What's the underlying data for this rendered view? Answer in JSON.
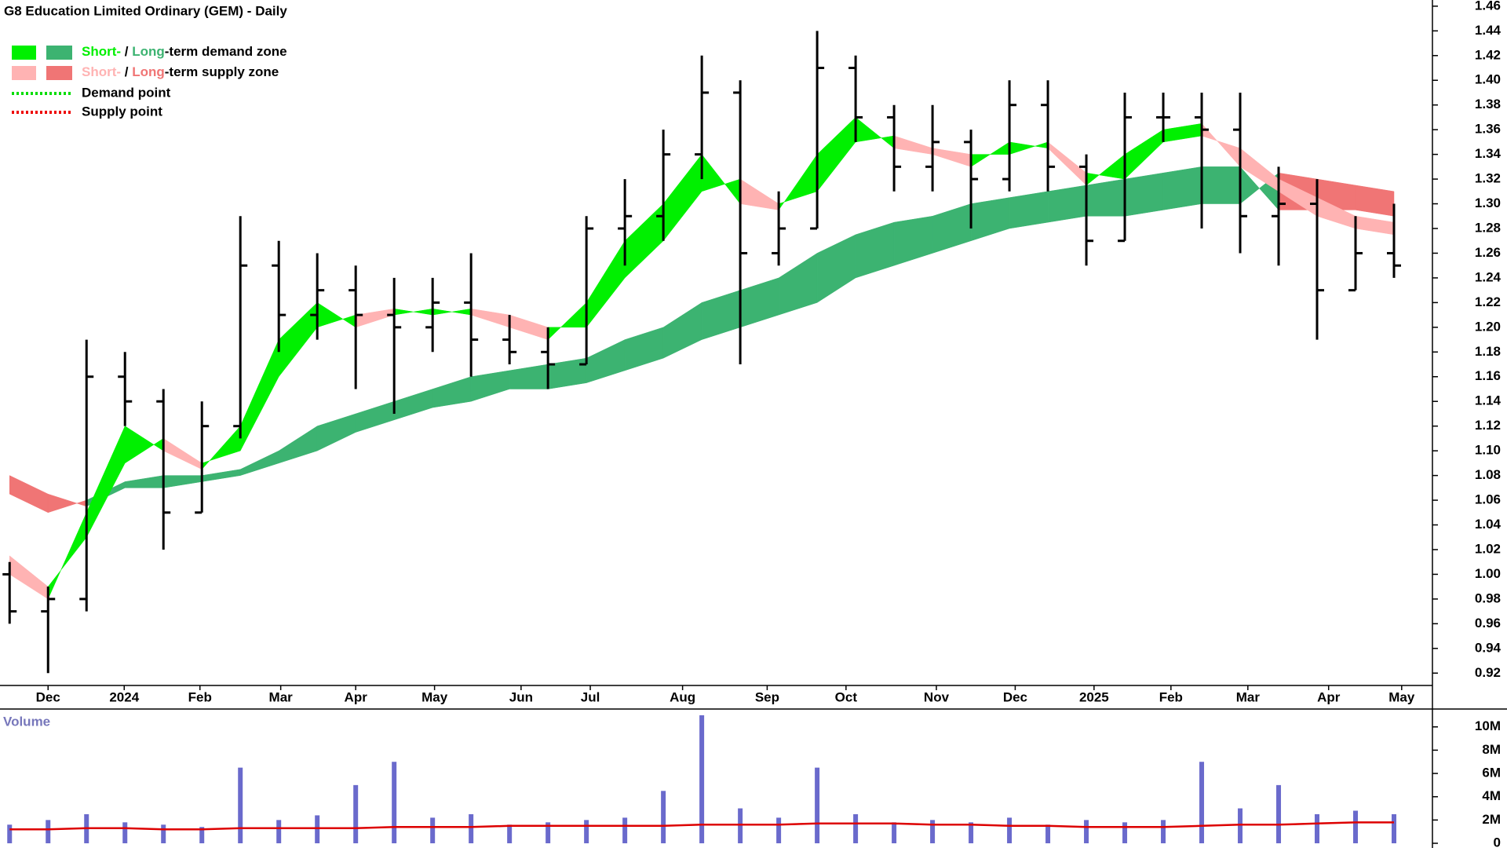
{
  "chart_data": [
    {
      "type": "ohlc",
      "title": "G8 Education Limited Ordinary (GEM) - Daily",
      "xlim": [
        -0.25,
        37.0
      ],
      "xticks": [
        {
          "value": 1.0,
          "label": "Dec"
        },
        {
          "value": 2.98,
          "label": "2024"
        },
        {
          "value": 4.95,
          "label": "Feb"
        },
        {
          "value": 7.05,
          "label": "Mar"
        },
        {
          "value": 9.0,
          "label": "Apr"
        },
        {
          "value": 11.05,
          "label": "May"
        },
        {
          "value": 13.3,
          "label": "Jun"
        },
        {
          "value": 15.1,
          "label": "Jul"
        },
        {
          "value": 17.5,
          "label": "Aug"
        },
        {
          "value": 19.7,
          "label": "Sep"
        },
        {
          "value": 21.75,
          "label": "Oct"
        },
        {
          "value": 24.1,
          "label": "Nov"
        },
        {
          "value": 26.15,
          "label": "Dec"
        },
        {
          "value": 28.2,
          "label": "2025"
        },
        {
          "value": 30.2,
          "label": "Feb"
        },
        {
          "value": 32.2,
          "label": "Mar"
        },
        {
          "value": 34.3,
          "label": "Apr"
        },
        {
          "value": 36.2,
          "label": "May"
        }
      ],
      "ylim": [
        0.91,
        1.465
      ],
      "yticks": [
        0.92,
        0.94,
        0.96,
        0.98,
        {
          "value": 1.0,
          "label": "1.00"
        },
        1.02,
        1.04,
        1.06,
        1.08,
        {
          "value": 1.1,
          "label": "1.10"
        },
        1.12,
        1.14,
        1.16,
        1.18,
        {
          "value": 1.2,
          "label": "1.20"
        },
        1.22,
        1.24,
        1.26,
        1.28,
        {
          "value": 1.3,
          "label": "1.30"
        },
        1.32,
        1.34,
        1.36,
        1.38,
        {
          "value": 1.4,
          "label": "1.40"
        },
        1.42,
        1.44,
        1.46
      ],
      "bar_color": "#000000",
      "open": [
        1.0,
        0.97,
        0.98,
        1.16,
        1.14,
        1.05,
        1.12,
        1.25,
        1.21,
        1.23,
        1.21,
        1.2,
        1.22,
        1.19,
        1.18,
        1.17,
        1.28,
        1.29,
        1.34,
        1.39,
        1.26,
        1.28,
        1.41,
        1.37,
        1.33,
        1.35,
        1.32,
        1.38,
        1.33,
        1.27,
        1.37,
        1.37,
        1.36,
        1.29,
        1.3,
        1.23,
        1.26
      ],
      "high": [
        1.01,
        0.99,
        1.19,
        1.18,
        1.15,
        1.14,
        1.29,
        1.27,
        1.26,
        1.25,
        1.24,
        1.24,
        1.26,
        1.21,
        1.2,
        1.29,
        1.32,
        1.36,
        1.42,
        1.4,
        1.31,
        1.44,
        1.42,
        1.38,
        1.38,
        1.36,
        1.4,
        1.4,
        1.34,
        1.39,
        1.39,
        1.39,
        1.39,
        1.33,
        1.32,
        1.29,
        1.3
      ],
      "low": [
        0.96,
        0.92,
        0.97,
        1.12,
        1.02,
        1.05,
        1.11,
        1.18,
        1.19,
        1.15,
        1.13,
        1.18,
        1.16,
        1.17,
        1.15,
        1.17,
        1.25,
        1.27,
        1.32,
        1.17,
        1.25,
        1.28,
        1.35,
        1.31,
        1.31,
        1.28,
        1.31,
        1.31,
        1.25,
        1.27,
        1.35,
        1.28,
        1.26,
        1.25,
        1.19,
        1.23,
        1.24
      ],
      "close": [
        0.97,
        0.98,
        1.16,
        1.14,
        1.05,
        1.12,
        1.25,
        1.21,
        1.23,
        1.21,
        1.2,
        1.22,
        1.19,
        1.18,
        1.17,
        1.28,
        1.29,
        1.34,
        1.39,
        1.26,
        1.28,
        1.41,
        1.37,
        1.33,
        1.35,
        1.32,
        1.38,
        1.33,
        1.27,
        1.37,
        1.37,
        1.36,
        1.29,
        1.3,
        1.23,
        1.26,
        1.25
      ],
      "long_band": {
        "fast": [
          1.065,
          1.05,
          1.06,
          1.075,
          1.08,
          1.08,
          1.085,
          1.1,
          1.12,
          1.13,
          1.14,
          1.15,
          1.16,
          1.165,
          1.17,
          1.175,
          1.19,
          1.2,
          1.22,
          1.23,
          1.24,
          1.26,
          1.275,
          1.285,
          1.29,
          1.3,
          1.305,
          1.31,
          1.315,
          1.32,
          1.325,
          1.33,
          1.33,
          1.295,
          1.295,
          1.295,
          1.29
        ],
        "slow": [
          1.08,
          1.065,
          1.055,
          1.07,
          1.07,
          1.075,
          1.08,
          1.09,
          1.1,
          1.115,
          1.125,
          1.135,
          1.14,
          1.15,
          1.15,
          1.155,
          1.165,
          1.175,
          1.19,
          1.2,
          1.21,
          1.22,
          1.24,
          1.25,
          1.26,
          1.27,
          1.28,
          1.285,
          1.29,
          1.29,
          1.295,
          1.3,
          1.3,
          1.325,
          1.32,
          1.315,
          1.31
        ]
      },
      "short_band": {
        "fast": [
          1.0,
          0.98,
          1.05,
          1.12,
          1.1,
          1.085,
          1.12,
          1.19,
          1.22,
          1.2,
          1.21,
          1.215,
          1.21,
          1.2,
          1.19,
          1.22,
          1.27,
          1.3,
          1.34,
          1.3,
          1.295,
          1.34,
          1.37,
          1.345,
          1.34,
          1.33,
          1.35,
          1.345,
          1.315,
          1.34,
          1.36,
          1.365,
          1.33,
          1.31,
          1.29,
          1.28,
          1.275
        ],
        "slow": [
          1.015,
          0.99,
          1.03,
          1.09,
          1.11,
          1.09,
          1.1,
          1.16,
          1.2,
          1.21,
          1.215,
          1.21,
          1.215,
          1.21,
          1.2,
          1.2,
          1.24,
          1.27,
          1.31,
          1.32,
          1.3,
          1.31,
          1.35,
          1.355,
          1.345,
          1.34,
          1.34,
          1.35,
          1.325,
          1.32,
          1.35,
          1.355,
          1.345,
          1.32,
          1.305,
          1.29,
          1.285
        ]
      },
      "legend": [
        {
          "parts": [
            "Short-",
            " / ",
            "Long",
            "-term demand zone"
          ],
          "short_color": "#00f000",
          "long_color": "#3cb371"
        },
        {
          "parts": [
            "Short-",
            " / ",
            "Long",
            "-term supply zone"
          ],
          "short_color": "#ffb3b3",
          "long_color": "#f07575"
        },
        {
          "label": "Demand point",
          "color": "#00dd00",
          "style": "dotted"
        },
        {
          "label": "Supply point",
          "color": "#ee0000",
          "style": "dotted"
        }
      ]
    },
    {
      "type": "bar",
      "title": "Volume",
      "ylim": [
        0,
        11400000
      ],
      "yticks": [
        0,
        {
          "value": 2000000,
          "label": "2M"
        },
        {
          "value": 4000000,
          "label": "4M"
        },
        {
          "value": 6000000,
          "label": "6M"
        },
        {
          "value": 8000000,
          "label": "8M"
        },
        {
          "value": 10000000,
          "label": "10M"
        }
      ],
      "color": "#6a6acc",
      "values": [
        1600000,
        2000000,
        2500000,
        1800000,
        1600000,
        1400000,
        6500000,
        2000000,
        2400000,
        5000000,
        7000000,
        2200000,
        2500000,
        1600000,
        1800000,
        2000000,
        2200000,
        4500000,
        11000000,
        3000000,
        2200000,
        6500000,
        2500000,
        1800000,
        2000000,
        1800000,
        2200000,
        1600000,
        2000000,
        1800000,
        2000000,
        7000000,
        3000000,
        5000000,
        2500000,
        2800000,
        2500000
      ],
      "average": {
        "color": "#dd0000",
        "values": [
          1200000,
          1200000,
          1300000,
          1300000,
          1200000,
          1200000,
          1300000,
          1300000,
          1300000,
          1300000,
          1400000,
          1400000,
          1400000,
          1500000,
          1500000,
          1500000,
          1500000,
          1500000,
          1600000,
          1600000,
          1600000,
          1700000,
          1700000,
          1700000,
          1600000,
          1600000,
          1500000,
          1500000,
          1400000,
          1400000,
          1400000,
          1500000,
          1600000,
          1600000,
          1700000,
          1800000,
          1800000
        ]
      }
    }
  ]
}
